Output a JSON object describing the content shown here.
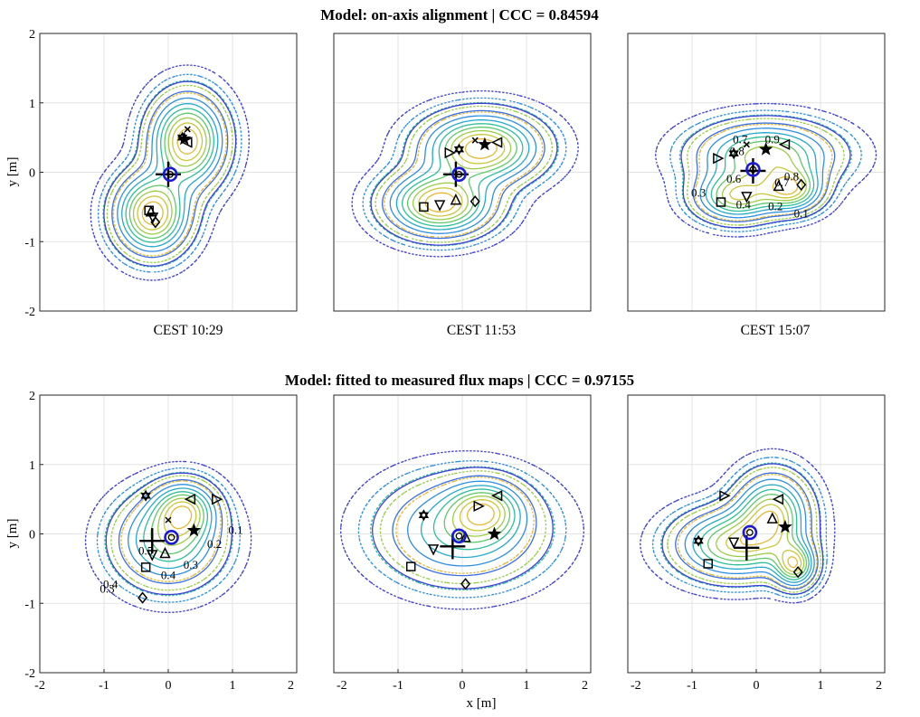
{
  "figure": {
    "row_titles": [
      "Model: on-axis alignment  |  CCC = 0.84594",
      "Model: fitted to measured flux maps  |  CCC = 0.97155"
    ],
    "panel_captions": [
      "CEST  10:29",
      "CEST  11:53",
      "CEST  15:07"
    ],
    "ylabel": "y [m]",
    "xlabel": "x [m]"
  },
  "colors": {
    "contour_levels": [
      "#3f3fd6",
      "#3a6ee6",
      "#2e8fe0",
      "#24a9cc",
      "#2bbf9a",
      "#5ec96a",
      "#9bcd45",
      "#c9c73a",
      "#e6b833"
    ],
    "marker_ring": "#1a1ad6",
    "markers": "#000000",
    "grid": "#e3e3e3"
  },
  "chart_data": [
    {
      "type": "contour",
      "row": 1,
      "caption": "CEST  10:29",
      "xlim": [
        -2,
        2
      ],
      "ylim": [
        -2,
        2
      ],
      "grid": true,
      "xticks": [],
      "yticks": [
        -2,
        -1,
        0,
        1,
        2
      ],
      "modes": [
        [
          0.3,
          0.45,
          0.35,
          0.4,
          -0.6
        ],
        [
          -0.25,
          -0.6,
          0.35,
          0.35,
          -0.6
        ]
      ],
      "aim_point": [
        0.0,
        -0.03
      ],
      "ring": [
        0.03,
        -0.03
      ],
      "markers": [
        {
          "shape": "x",
          "x": 0.3,
          "y": 0.62
        },
        {
          "shape": "star6",
          "x": 0.22,
          "y": 0.5
        },
        {
          "shape": "star",
          "x": 0.25,
          "y": 0.48
        },
        {
          "shape": "tri_left",
          "x": 0.3,
          "y": 0.43
        },
        {
          "shape": "square",
          "x": -0.3,
          "y": -0.55
        },
        {
          "shape": "tri_up",
          "x": -0.27,
          "y": -0.57
        },
        {
          "shape": "tri_down",
          "x": -0.24,
          "y": -0.65
        },
        {
          "shape": "diamond",
          "x": -0.2,
          "y": -0.72
        }
      ],
      "contour_labels": []
    },
    {
      "type": "contour",
      "row": 1,
      "caption": "CEST  11:53",
      "xlim": [
        -2,
        2
      ],
      "ylim": [
        -2,
        2
      ],
      "grid": true,
      "xticks": [],
      "yticks": [],
      "modes": [
        [
          0.3,
          0.35,
          0.55,
          0.3,
          0.1
        ],
        [
          -0.35,
          -0.45,
          0.5,
          0.28,
          0.1
        ]
      ],
      "aim_point": [
        -0.1,
        -0.03
      ],
      "ring": [
        -0.05,
        -0.03
      ],
      "markers": [
        {
          "shape": "tri_right",
          "x": -0.2,
          "y": 0.28
        },
        {
          "shape": "star6",
          "x": -0.05,
          "y": 0.33
        },
        {
          "shape": "x",
          "x": 0.2,
          "y": 0.46
        },
        {
          "shape": "star",
          "x": 0.35,
          "y": 0.4
        },
        {
          "shape": "tri_left",
          "x": 0.55,
          "y": 0.43
        },
        {
          "shape": "square",
          "x": -0.6,
          "y": -0.5
        },
        {
          "shape": "tri_down",
          "x": -0.35,
          "y": -0.47
        },
        {
          "shape": "tri_up",
          "x": -0.1,
          "y": -0.4
        },
        {
          "shape": "diamond",
          "x": 0.2,
          "y": -0.42
        }
      ],
      "contour_labels": []
    },
    {
      "type": "contour",
      "row": 1,
      "caption": "CEST  15:07",
      "xlim": [
        -2,
        2
      ],
      "ylim": [
        -2,
        2
      ],
      "grid": true,
      "xticks": [],
      "yticks": [],
      "modes": [
        [
          0.15,
          0.25,
          0.65,
          0.28,
          0.05
        ],
        [
          -0.3,
          -0.35,
          0.4,
          0.22,
          0.0
        ],
        [
          0.55,
          -0.25,
          0.3,
          0.2,
          0.0
        ]
      ],
      "aim_point": [
        -0.05,
        0.02
      ],
      "ring": [
        -0.05,
        0.04
      ],
      "markers": [
        {
          "shape": "tri_right",
          "x": -0.6,
          "y": 0.2
        },
        {
          "shape": "star6",
          "x": -0.35,
          "y": 0.27
        },
        {
          "shape": "x",
          "x": -0.15,
          "y": 0.4
        },
        {
          "shape": "star",
          "x": 0.15,
          "y": 0.33
        },
        {
          "shape": "tri_left",
          "x": 0.45,
          "y": 0.4
        },
        {
          "shape": "square",
          "x": -0.55,
          "y": -0.43
        },
        {
          "shape": "tri_down",
          "x": -0.15,
          "y": -0.35
        },
        {
          "shape": "tri_up",
          "x": 0.35,
          "y": -0.2
        },
        {
          "shape": "diamond",
          "x": 0.7,
          "y": -0.18
        }
      ],
      "contour_labels": [
        {
          "text": "0.7",
          "x": -0.25,
          "y": 0.42
        },
        {
          "text": "0.8",
          "x": -0.3,
          "y": 0.25
        },
        {
          "text": "0.9",
          "x": 0.25,
          "y": 0.42
        },
        {
          "text": "0.8",
          "x": 0.55,
          "y": -0.12
        },
        {
          "text": "0.7",
          "x": 0.4,
          "y": -0.2
        },
        {
          "text": "0.6",
          "x": -0.35,
          "y": -0.15
        },
        {
          "text": "0.2",
          "x": 0.3,
          "y": -0.55
        },
        {
          "text": "0.1",
          "x": 0.7,
          "y": -0.65
        },
        {
          "text": "0.3",
          "x": -0.9,
          "y": -0.35
        },
        {
          "text": "0.4",
          "x": -0.2,
          "y": -0.52
        }
      ]
    },
    {
      "type": "contour",
      "row": 2,
      "caption": "",
      "xlim": [
        -2,
        2
      ],
      "ylim": [
        -2,
        2
      ],
      "grid": true,
      "xticks": [
        -2,
        -1,
        0,
        1,
        2
      ],
      "yticks": [
        -2,
        -1,
        0,
        1,
        2
      ],
      "modes": [
        [
          0.0,
          -0.1,
          0.5,
          0.4,
          0.78
        ],
        [
          0.25,
          0.35,
          0.3,
          0.25,
          0.78
        ]
      ],
      "aim_point": [
        -0.25,
        -0.1
      ],
      "ring": [
        0.05,
        -0.05
      ],
      "markers": [
        {
          "shape": "star6",
          "x": -0.35,
          "y": 0.55
        },
        {
          "shape": "x",
          "x": 0.0,
          "y": 0.2
        },
        {
          "shape": "tri_left",
          "x": 0.35,
          "y": 0.5
        },
        {
          "shape": "tri_right",
          "x": 0.75,
          "y": 0.5
        },
        {
          "shape": "star",
          "x": 0.4,
          "y": 0.05
        },
        {
          "shape": "tri_down",
          "x": -0.25,
          "y": -0.3
        },
        {
          "shape": "tri_up",
          "x": -0.05,
          "y": -0.28
        },
        {
          "shape": "square",
          "x": -0.35,
          "y": -0.48
        },
        {
          "shape": "diamond",
          "x": -0.4,
          "y": -0.92
        }
      ],
      "contour_labels": [
        {
          "text": "0.1",
          "x": 1.05,
          "y": 0.0
        },
        {
          "text": "0.2",
          "x": 0.72,
          "y": -0.2
        },
        {
          "text": "0.3",
          "x": 0.35,
          "y": -0.5
        },
        {
          "text": "0.4",
          "x": 0.0,
          "y": -0.65
        },
        {
          "text": "0.5",
          "x": -0.35,
          "y": -0.3
        },
        {
          "text": "0.4",
          "x": -0.9,
          "y": -0.78
        },
        {
          "text": "0.3",
          "x": -0.95,
          "y": -0.85
        }
      ]
    },
    {
      "type": "contour",
      "row": 2,
      "caption": "",
      "xlim": [
        -2,
        2
      ],
      "ylim": [
        -2,
        2
      ],
      "grid": true,
      "xticks": [
        -2,
        -1,
        0,
        1,
        2
      ],
      "yticks": [],
      "modes": [
        [
          0.0,
          0.05,
          0.75,
          0.45,
          0.5
        ],
        [
          0.35,
          0.35,
          0.35,
          0.25,
          0.5
        ]
      ],
      "aim_point": [
        -0.15,
        -0.18
      ],
      "ring": [
        -0.05,
        -0.03
      ],
      "markers": [
        {
          "shape": "star6",
          "x": -0.6,
          "y": 0.27
        },
        {
          "shape": "tri_right",
          "x": 0.25,
          "y": 0.4
        },
        {
          "shape": "tri_left",
          "x": 0.55,
          "y": 0.55
        },
        {
          "shape": "star",
          "x": 0.5,
          "y": 0.0
        },
        {
          "shape": "tri_down",
          "x": -0.45,
          "y": -0.22
        },
        {
          "shape": "tri_up",
          "x": 0.05,
          "y": -0.05
        },
        {
          "shape": "square",
          "x": -0.8,
          "y": -0.47
        },
        {
          "shape": "diamond",
          "x": 0.05,
          "y": -0.72
        }
      ],
      "contour_labels": []
    },
    {
      "type": "contour",
      "row": 2,
      "caption": "",
      "xlim": [
        -2,
        2
      ],
      "ylim": [
        -2,
        2
      ],
      "grid": true,
      "xticks": [
        -2,
        -1,
        0,
        1,
        2
      ],
      "yticks": [],
      "modes": [
        [
          0.25,
          0.3,
          0.35,
          0.35,
          0.7
        ],
        [
          -0.35,
          -0.15,
          0.55,
          0.3,
          0.0
        ],
        [
          0.6,
          -0.45,
          0.2,
          0.2,
          0.0
        ]
      ],
      "aim_point": [
        -0.15,
        -0.2
      ],
      "ring": [
        -0.1,
        0.02
      ],
      "markers": [
        {
          "shape": "tri_right",
          "x": -0.5,
          "y": 0.55
        },
        {
          "shape": "tri_left",
          "x": 0.35,
          "y": 0.5
        },
        {
          "shape": "tri_up",
          "x": 0.25,
          "y": 0.22
        },
        {
          "shape": "star",
          "x": 0.45,
          "y": 0.1
        },
        {
          "shape": "star6",
          "x": -0.9,
          "y": -0.1
        },
        {
          "shape": "tri_down",
          "x": -0.35,
          "y": -0.12
        },
        {
          "shape": "square",
          "x": -0.75,
          "y": -0.43
        },
        {
          "shape": "diamond",
          "x": 0.65,
          "y": -0.55
        }
      ],
      "contour_labels": []
    }
  ]
}
